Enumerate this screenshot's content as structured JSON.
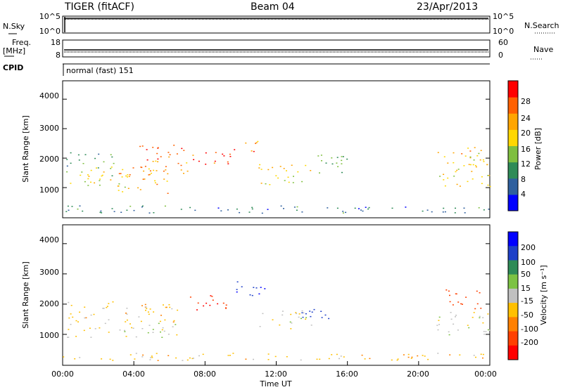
{
  "header": {
    "station": "TIGER (fitACF)",
    "beam": "Beam 04",
    "date": "23/Apr/2013"
  },
  "nsky_panel": {
    "left_label": "N.Sky",
    "right_label": "N.Search",
    "left_ticks": [
      "10^5",
      "10^0"
    ],
    "right_ticks": [
      "10^5",
      "10^0"
    ]
  },
  "freq_panel": {
    "left_label_1": "Freq.",
    "left_label_2": "[MHz]",
    "right_label": "Nave",
    "left_ticks": [
      "18",
      "8"
    ],
    "right_ticks": [
      "60",
      "0"
    ]
  },
  "cpid_panel": {
    "left_label": "CPID",
    "text": "normal (fast) 151"
  },
  "colors": {
    "power": [
      "#0000ff",
      "#2e5f9e",
      "#2e8b57",
      "#7fbf3f",
      "#ffd700",
      "#ffa500",
      "#ff6000",
      "#ff0000"
    ],
    "velocity": [
      "#0000ff",
      "#1e40c8",
      "#2e8b57",
      "#7cc243",
      "#c0c0c0",
      "#ffc000",
      "#ff8000",
      "#ff4000",
      "#ff0000"
    ]
  },
  "chart_data": [
    {
      "type": "heatmap",
      "quantity": "Power",
      "ylabel": "Slant Range [km]",
      "ylim": [
        0,
        4600
      ],
      "yticks": [
        "1000",
        "2000",
        "3000",
        "4000"
      ],
      "xlim": [
        0,
        24
      ],
      "xticks": [
        "00:00",
        "04:00",
        "08:00",
        "12:00",
        "16:00",
        "20:00",
        "00:00"
      ],
      "colorbar_label": "Power [dB]",
      "colorbar_ticks": [
        "28",
        "24",
        "20",
        "16",
        "12",
        "8",
        "4"
      ],
      "scatter_regions_hours_km_db": [
        [
          0.2,
          3.8,
          1000,
          1600,
          16
        ],
        [
          0.2,
          3.0,
          1600,
          2200,
          12
        ],
        [
          3.0,
          6.0,
          800,
          1700,
          22
        ],
        [
          4.0,
          7.0,
          1500,
          2500,
          24
        ],
        [
          7.0,
          9.5,
          1800,
          2300,
          28
        ],
        [
          9.5,
          11.0,
          2200,
          2600,
          24
        ],
        [
          11.0,
          14.0,
          1100,
          1800,
          20
        ],
        [
          14.0,
          16.0,
          1500,
          2200,
          12
        ],
        [
          21.0,
          24.0,
          1000,
          2400,
          20
        ],
        [
          0.0,
          24.0,
          150,
          400,
          8
        ]
      ]
    },
    {
      "type": "heatmap",
      "quantity": "Velocity",
      "ylabel": "Slant Range [km]",
      "ylim": [
        0,
        4600
      ],
      "yticks": [
        "1000",
        "2000",
        "3000",
        "4000"
      ],
      "xlabel": "Time UT",
      "xlim": [
        0,
        24
      ],
      "xticks": [
        "00:00",
        "04:00",
        "08:00",
        "12:00",
        "16:00",
        "20:00",
        "00:00"
      ],
      "colorbar_label": "Velocity [m s⁻¹]",
      "colorbar_ticks": [
        "200",
        "100",
        "50",
        "15",
        "-15",
        "-50",
        "-100",
        "-200"
      ],
      "scatter_regions_hours_km_ms": [
        [
          0.2,
          6.5,
          900,
          1400,
          0
        ],
        [
          0.2,
          6.5,
          1400,
          2100,
          -30
        ],
        [
          7.0,
          9.5,
          1800,
          2300,
          -200
        ],
        [
          9.5,
          11.5,
          2300,
          2800,
          200
        ],
        [
          11.0,
          14.0,
          1200,
          1800,
          0
        ],
        [
          12.5,
          15.0,
          1500,
          1900,
          150
        ],
        [
          21.0,
          24.0,
          1000,
          1800,
          0
        ],
        [
          21.5,
          23.5,
          1800,
          2500,
          -150
        ],
        [
          0.0,
          24.0,
          150,
          400,
          -30
        ]
      ]
    }
  ]
}
